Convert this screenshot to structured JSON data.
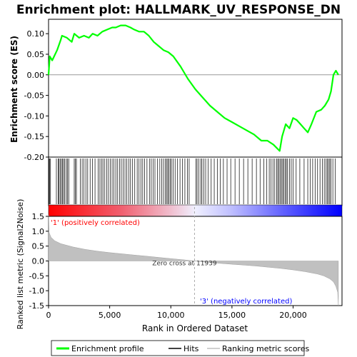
{
  "chart_data": {
    "type": "line",
    "title": "Enrichment plot: HALLMARK_UV_RESPONSE_DN",
    "xlabel": "Rank in Ordered Dataset",
    "x_ticks": [
      0,
      5000,
      10000,
      15000,
      20000
    ],
    "x_tick_labels": [
      "0",
      "5,000",
      "10,000",
      "15,000",
      "20,000"
    ],
    "xlim": [
      0,
      24000
    ],
    "top_panel": {
      "ylabel": "Enrichment score (ES)",
      "ylim": [
        -0.2,
        0.135
      ],
      "y_ticks": [
        0.1,
        0.05,
        0.0,
        -0.05,
        -0.1,
        -0.15,
        -0.2
      ],
      "y_tick_labels": [
        "0.10",
        "0.05",
        "0.00",
        "-0.05",
        "-0.10",
        "-0.15",
        "-0.20"
      ],
      "series": [
        {
          "name": "Enrichment profile",
          "color": "#00ff00",
          "x": [
            0,
            100,
            300,
            700,
            1000,
            1100,
            1500,
            1900,
            2100,
            2500,
            2900,
            3300,
            3600,
            4000,
            4400,
            4800,
            5200,
            5500,
            5900,
            6300,
            6700,
            7000,
            7400,
            7800,
            8200,
            8600,
            9000,
            9400,
            9800,
            10200,
            10800,
            11400,
            12000,
            12600,
            13200,
            13800,
            14400,
            15000,
            15600,
            16200,
            16800,
            17400,
            17900,
            18400,
            18900,
            19100,
            19400,
            19700,
            20000,
            20300,
            20600,
            20900,
            21200,
            21500,
            21900,
            22300,
            22600,
            22900,
            23100,
            23300,
            23500,
            23700
          ],
          "y": [
            0.0,
            0.045,
            0.035,
            0.06,
            0.085,
            0.095,
            0.09,
            0.08,
            0.1,
            0.09,
            0.095,
            0.09,
            0.1,
            0.095,
            0.105,
            0.11,
            0.115,
            0.115,
            0.12,
            0.12,
            0.115,
            0.11,
            0.105,
            0.105,
            0.095,
            0.08,
            0.07,
            0.06,
            0.055,
            0.045,
            0.02,
            -0.01,
            -0.035,
            -0.055,
            -0.075,
            -0.09,
            -0.105,
            -0.115,
            -0.125,
            -0.135,
            -0.145,
            -0.16,
            -0.16,
            -0.17,
            -0.185,
            -0.15,
            -0.12,
            -0.13,
            -0.105,
            -0.11,
            -0.12,
            -0.13,
            -0.14,
            -0.12,
            -0.09,
            -0.085,
            -0.075,
            -0.06,
            -0.04,
            0.0,
            0.01,
            0.0
          ]
        }
      ]
    },
    "hits_panel": {
      "series_name": "Hits",
      "color": "#000000",
      "hit_ranks": [
        30,
        90,
        160,
        640,
        780,
        860,
        950,
        1050,
        1130,
        1230,
        1330,
        1460,
        1560,
        1650,
        2100,
        2200,
        2280,
        2600,
        2750,
        2900,
        3050,
        3200,
        3400,
        3600,
        3800,
        4050,
        4200,
        4330,
        4450,
        4600,
        4750,
        4900,
        5050,
        5200,
        5350,
        5500,
        5650,
        5800,
        5950,
        6100,
        6250,
        6400,
        6550,
        6700,
        6850,
        7050,
        7250,
        7400,
        7550,
        7700,
        7850,
        8050,
        8250,
        8400,
        8550,
        8700,
        8900,
        9100,
        9250,
        9400,
        9550,
        9650,
        9750,
        9850,
        9950,
        10050,
        10200,
        10350,
        10550,
        10750,
        10950,
        11150,
        11350,
        11500,
        12050,
        12150,
        12300,
        12450,
        12550,
        12700,
        12850,
        13050,
        13300,
        13550,
        13800,
        14050,
        14300,
        14600,
        14900,
        15250,
        15600,
        15950,
        16300,
        16650,
        17000,
        17300,
        17600,
        17850,
        18050,
        18200,
        18350,
        18500,
        18650,
        18750,
        18850,
        18950,
        19050,
        19150,
        19250,
        19350,
        19450,
        19550,
        19700,
        19850,
        20000,
        20250,
        20550,
        20900,
        21200,
        21400,
        21600,
        21800,
        22000,
        22200,
        22400,
        22550,
        22700,
        22800,
        22900,
        23000,
        23100,
        23250,
        23450
      ]
    },
    "bottom_panel": {
      "ylabel": "Ranked list metric (Signal2Noise)",
      "ylim": [
        -1.5,
        1.5
      ],
      "y_ticks": [
        1.5,
        1.0,
        0.5,
        0.0,
        -0.5,
        -1.0,
        -1.5
      ],
      "y_tick_labels": [
        "1.5",
        "1.0",
        "0.5",
        "0.0",
        "-0.5",
        "-1.0",
        "-1.5"
      ],
      "series_name": "Ranking metric scores",
      "color": "#c0c0c0",
      "x": [
        0,
        50,
        200,
        500,
        1000,
        2000,
        3000,
        4000,
        5000,
        6000,
        7000,
        8000,
        9000,
        10000,
        11000,
        11939,
        13000,
        14000,
        15000,
        16000,
        17000,
        18000,
        19000,
        20000,
        21000,
        22000,
        22500,
        23000,
        23300,
        23500,
        23650,
        23700
      ],
      "y": [
        1.55,
        0.95,
        0.8,
        0.68,
        0.58,
        0.47,
        0.39,
        0.33,
        0.28,
        0.24,
        0.2,
        0.16,
        0.12,
        0.08,
        0.04,
        0.0,
        -0.04,
        -0.08,
        -0.11,
        -0.14,
        -0.17,
        -0.21,
        -0.25,
        -0.3,
        -0.36,
        -0.44,
        -0.5,
        -0.6,
        -0.7,
        -0.85,
        -1.05,
        -1.5
      ],
      "annotations": {
        "positive": "'1' (positively correlated)",
        "negative": "'3' (negatively correlated)",
        "zero_cross": "Zero cross at 11939"
      },
      "zero_cross_rank": 11939
    },
    "legend": {
      "position": "bottom",
      "items": [
        {
          "label": "Enrichment profile",
          "color": "#00ff00"
        },
        {
          "label": "Hits",
          "color": "#000000"
        },
        {
          "label": "Ranking metric scores",
          "color": "#c0c0c0"
        }
      ]
    },
    "colors": {
      "positive_text": "#ff0000",
      "negative_text": "#0000ff",
      "gradient_start": "#ff0000",
      "gradient_end": "#0000ff"
    }
  }
}
